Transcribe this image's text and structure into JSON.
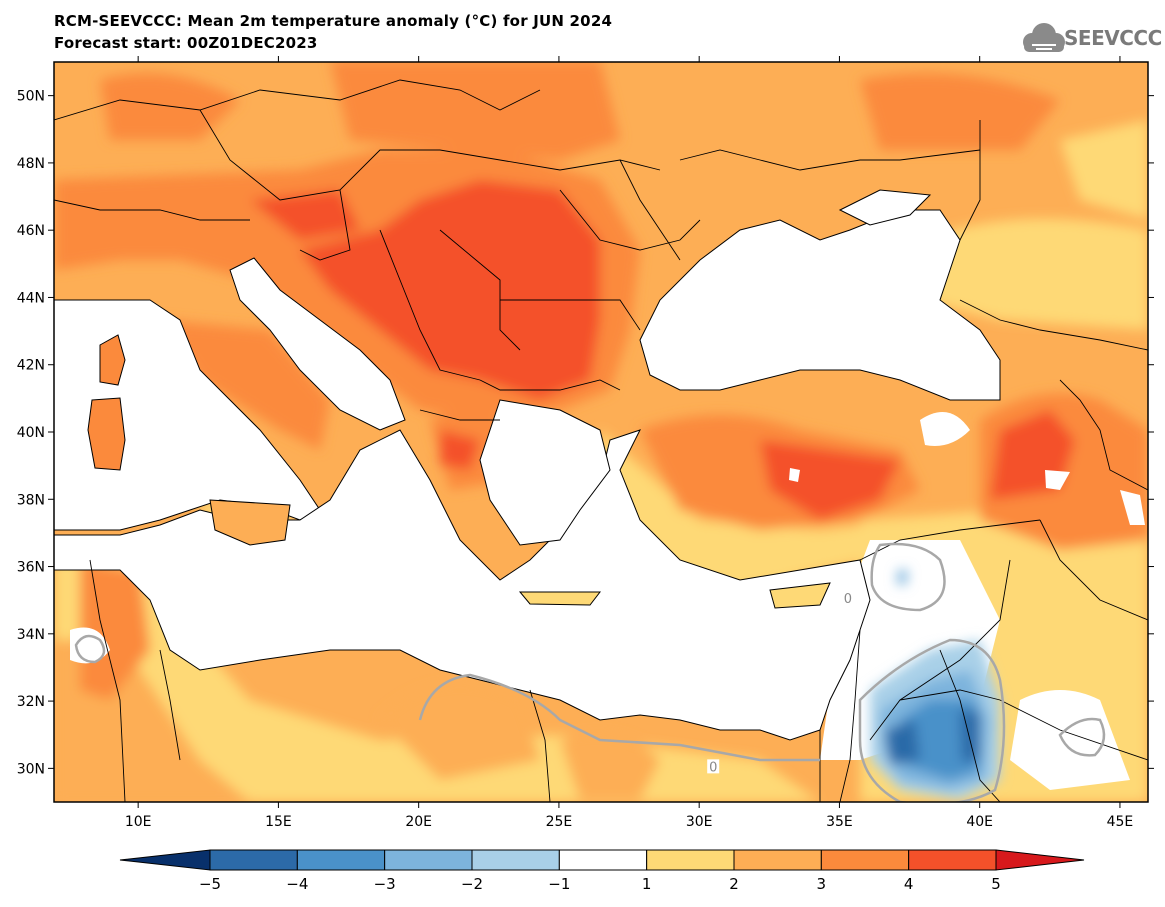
{
  "title": {
    "line1": "RCM-SEEVCCC: Mean 2m temperature anomaly (°C) for JUN 2024",
    "line2": "Forecast start: 00Z01DEC2023"
  },
  "logo": {
    "text": "SEEVCCC",
    "icon": "cloud-icon",
    "color": "#7a7a7a"
  },
  "map": {
    "extent": {
      "lon": [
        7,
        46
      ],
      "lat": [
        29,
        51
      ]
    },
    "lon_ticks": [
      {
        "value": 10,
        "label": "10E"
      },
      {
        "value": 15,
        "label": "15E"
      },
      {
        "value": 20,
        "label": "20E"
      },
      {
        "value": 25,
        "label": "25E"
      },
      {
        "value": 30,
        "label": "30E"
      },
      {
        "value": 35,
        "label": "35E"
      },
      {
        "value": 40,
        "label": "40E"
      },
      {
        "value": 45,
        "label": "45E"
      }
    ],
    "lat_ticks": [
      {
        "value": 50,
        "label": "50N"
      },
      {
        "value": 48,
        "label": "48N"
      },
      {
        "value": 46,
        "label": "46N"
      },
      {
        "value": 44,
        "label": "44N"
      },
      {
        "value": 42,
        "label": "42N"
      },
      {
        "value": 40,
        "label": "40N"
      },
      {
        "value": 38,
        "label": "38N"
      },
      {
        "value": 36,
        "label": "36N"
      },
      {
        "value": 34,
        "label": "34N"
      },
      {
        "value": 32,
        "label": "32N"
      },
      {
        "value": 30,
        "label": "30N"
      }
    ],
    "contour_labels": [
      {
        "text": "0",
        "lon": 35.3,
        "lat": 35.0
      },
      {
        "text": "0",
        "lon": 30.5,
        "lat": 30.0
      }
    ]
  },
  "colorbar": {
    "levels": [
      {
        "value": -5,
        "label": "−5"
      },
      {
        "value": -4,
        "label": "−4"
      },
      {
        "value": -3,
        "label": "−3"
      },
      {
        "value": -2,
        "label": "−2"
      },
      {
        "value": -1,
        "label": "−1"
      },
      {
        "value": 1,
        "label": "1"
      },
      {
        "value": 2,
        "label": "2"
      },
      {
        "value": 3,
        "label": "3"
      },
      {
        "value": 4,
        "label": "4"
      },
      {
        "value": 5,
        "label": "5"
      }
    ],
    "colors": [
      "#08306b",
      "#2c6aa8",
      "#4a91c9",
      "#7db4dd",
      "#a9d0e8",
      "#ffffff",
      "#fed976",
      "#fdae55",
      "#fb8a3c",
      "#f4512a",
      "#d7191c"
    ]
  }
}
